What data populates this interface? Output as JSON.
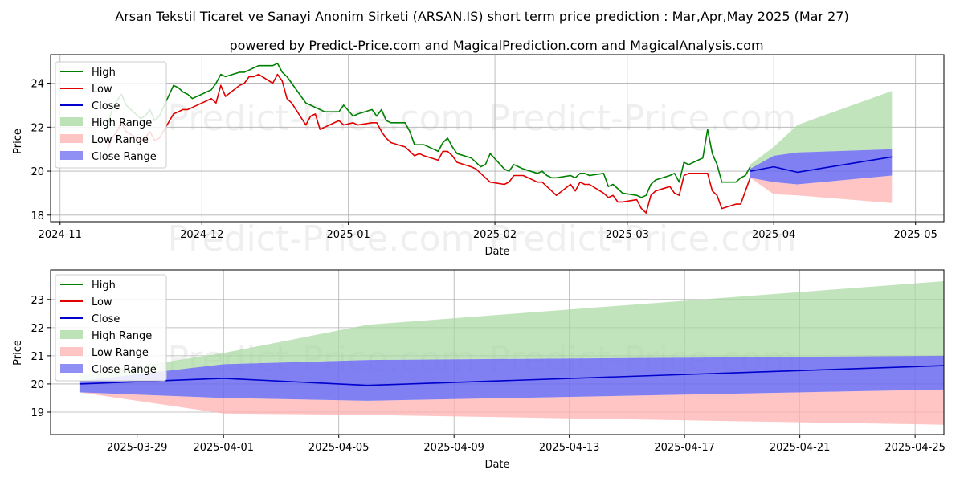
{
  "title_line1": "Arsan Tekstil Ticaret ve Sanayi Anonim Sirketi (ARSAN.IS) short term price prediction : Mar,Apr,May 2025 (Mar 27)",
  "title_line2": "powered by Predict-Price.com and MagicalPrediction.com and MagicalAnalysis.com",
  "watermark": "Predict-Price.com",
  "colors": {
    "high": "#008000",
    "low": "#e00000",
    "close": "#0000cc",
    "high_range": "#a8d8a0",
    "low_range": "#ffb0b0",
    "close_range": "#6a6af0"
  },
  "legend": [
    "High",
    "Low",
    "Close",
    "High Range",
    "Low Range",
    "Close Range"
  ],
  "chart_data": [
    {
      "type": "line",
      "xlabel": "Date",
      "ylabel": "Price",
      "grid": true,
      "legend_position": "top-left",
      "xlim": [
        "2024-10-30",
        "2025-05-07"
      ],
      "ylim": [
        17.7,
        25.3
      ],
      "x_ticks": [
        "2024-11",
        "2024-12",
        "2025-01",
        "2025-02",
        "2025-03",
        "2025-04",
        "2025-05"
      ],
      "y_ticks": [
        18,
        20,
        22,
        24
      ],
      "history": {
        "dates": [
          "2024-11-11",
          "2024-11-12",
          "2024-11-13",
          "2024-11-14",
          "2024-11-15",
          "2024-11-18",
          "2024-11-19",
          "2024-11-20",
          "2024-11-21",
          "2024-11-22",
          "2024-11-25",
          "2024-11-26",
          "2024-11-27",
          "2024-11-28",
          "2024-11-29",
          "2024-12-02",
          "2024-12-03",
          "2024-12-04",
          "2024-12-05",
          "2024-12-06",
          "2024-12-09",
          "2024-12-10",
          "2024-12-11",
          "2024-12-12",
          "2024-12-13",
          "2024-12-16",
          "2024-12-17",
          "2024-12-18",
          "2024-12-19",
          "2024-12-20",
          "2024-12-23",
          "2024-12-24",
          "2024-12-25",
          "2024-12-26",
          "2024-12-27",
          "2024-12-30",
          "2024-12-31",
          "2025-01-02",
          "2025-01-03",
          "2025-01-06",
          "2025-01-07",
          "2025-01-08",
          "2025-01-09",
          "2025-01-10",
          "2025-01-13",
          "2025-01-14",
          "2025-01-15",
          "2025-01-16",
          "2025-01-17",
          "2025-01-20",
          "2025-01-21",
          "2025-01-22",
          "2025-01-23",
          "2025-01-24",
          "2025-01-27",
          "2025-01-28",
          "2025-01-29",
          "2025-01-30",
          "2025-01-31",
          "2025-02-03",
          "2025-02-04",
          "2025-02-05",
          "2025-02-06",
          "2025-02-07",
          "2025-02-10",
          "2025-02-11",
          "2025-02-12",
          "2025-02-13",
          "2025-02-14",
          "2025-02-17",
          "2025-02-18",
          "2025-02-19",
          "2025-02-20",
          "2025-02-21",
          "2025-02-24",
          "2025-02-25",
          "2025-02-26",
          "2025-02-27",
          "2025-02-28",
          "2025-03-03",
          "2025-03-04",
          "2025-03-05",
          "2025-03-06",
          "2025-03-07",
          "2025-03-10",
          "2025-03-11",
          "2025-03-12",
          "2025-03-13",
          "2025-03-14",
          "2025-03-17",
          "2025-03-18",
          "2025-03-19",
          "2025-03-20",
          "2025-03-21",
          "2025-03-24",
          "2025-03-25",
          "2025-03-26",
          "2025-03-27"
        ],
        "high": [
          22.0,
          22.8,
          23.2,
          23.5,
          23.0,
          22.4,
          22.5,
          22.8,
          22.3,
          22.5,
          23.9,
          23.8,
          23.6,
          23.5,
          23.3,
          23.6,
          23.7,
          24.0,
          24.4,
          24.3,
          24.5,
          24.5,
          24.6,
          24.7,
          24.8,
          24.8,
          24.9,
          24.5,
          24.3,
          24.0,
          23.1,
          23.0,
          22.9,
          22.8,
          22.7,
          22.7,
          23.0,
          22.5,
          22.6,
          22.8,
          22.5,
          22.8,
          22.3,
          22.2,
          22.2,
          21.8,
          21.2,
          21.2,
          21.2,
          20.9,
          21.3,
          21.5,
          21.1,
          20.8,
          20.6,
          20.4,
          20.2,
          20.3,
          20.8,
          20.1,
          20.0,
          20.3,
          20.2,
          20.1,
          19.9,
          20.0,
          19.8,
          19.7,
          19.7,
          19.8,
          19.7,
          19.9,
          19.9,
          19.8,
          19.9,
          19.3,
          19.4,
          19.2,
          19.0,
          18.9,
          18.8,
          18.9,
          19.4,
          19.6,
          19.8,
          19.9,
          19.5,
          20.4,
          20.3,
          20.6,
          21.9,
          20.8,
          20.3,
          19.5,
          19.5,
          19.7,
          19.8,
          20.2
        ],
        "low": [
          21.0,
          21.5,
          21.8,
          22.2,
          21.8,
          21.4,
          21.5,
          21.8,
          21.4,
          21.5,
          22.6,
          22.7,
          22.8,
          22.8,
          22.9,
          23.2,
          23.3,
          23.1,
          23.9,
          23.4,
          23.9,
          24.0,
          24.3,
          24.3,
          24.4,
          24.0,
          24.4,
          24.1,
          23.3,
          23.1,
          22.1,
          22.5,
          22.6,
          21.9,
          22.0,
          22.3,
          22.1,
          22.2,
          22.1,
          22.2,
          22.2,
          21.8,
          21.5,
          21.3,
          21.1,
          20.9,
          20.7,
          20.8,
          20.7,
          20.5,
          20.9,
          20.9,
          20.7,
          20.4,
          20.2,
          20.1,
          19.9,
          19.7,
          19.5,
          19.4,
          19.5,
          19.8,
          19.8,
          19.8,
          19.5,
          19.5,
          19.3,
          19.1,
          18.9,
          19.4,
          19.1,
          19.5,
          19.4,
          19.4,
          19.0,
          18.8,
          18.9,
          18.6,
          18.6,
          18.7,
          18.3,
          18.1,
          18.9,
          19.1,
          19.3,
          19.0,
          18.9,
          19.8,
          19.9,
          19.9,
          19.9,
          19.1,
          18.9,
          18.3,
          18.5,
          18.5,
          19.1,
          19.7
        ]
      },
      "forecast": {
        "dates": [
          "2025-03-27",
          "2025-04-01",
          "2025-04-06",
          "2025-04-26"
        ],
        "close": [
          20.0,
          20.2,
          19.95,
          20.65
        ],
        "close_range_upper": [
          20.1,
          20.7,
          20.85,
          21.0
        ],
        "close_range_lower": [
          19.7,
          19.5,
          19.4,
          19.8
        ],
        "high_range_upper": [
          20.3,
          21.1,
          22.1,
          23.65
        ],
        "high_range_lower": [
          20.05,
          20.7,
          20.85,
          21.0
        ],
        "low_range_upper": [
          19.7,
          19.5,
          19.4,
          19.8
        ],
        "low_range_lower": [
          19.7,
          18.95,
          18.9,
          18.55
        ]
      }
    },
    {
      "type": "line",
      "xlabel": "Date",
      "ylabel": "Price",
      "grid": true,
      "legend_position": "top-left",
      "xlim": [
        "2025-03-26",
        "2025-04-26"
      ],
      "ylim": [
        18.2,
        24.05
      ],
      "x_ticks": [
        "2025-03-29",
        "2025-04-01",
        "2025-04-05",
        "2025-04-09",
        "2025-04-13",
        "2025-04-17",
        "2025-04-21",
        "2025-04-25"
      ],
      "y_ticks": [
        19,
        20,
        21,
        22,
        23
      ]
    }
  ]
}
